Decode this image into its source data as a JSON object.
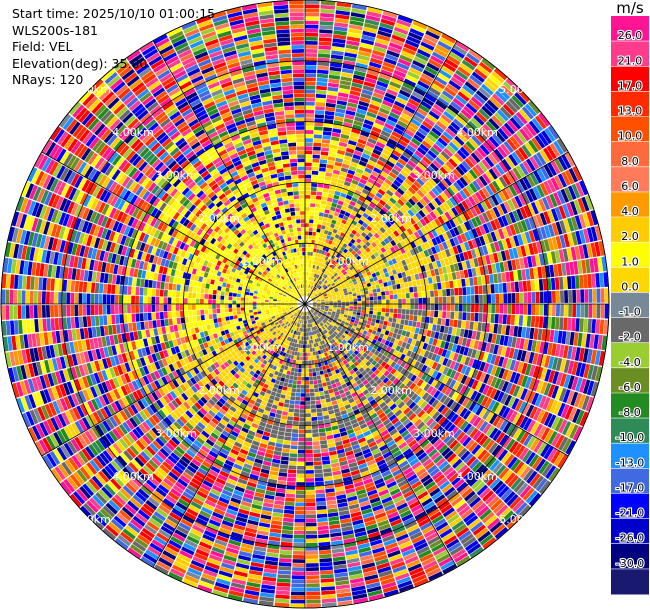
{
  "info": {
    "start_time": "Start time: 2025/10/10 01:00:15",
    "instrument": "WLS200s-181",
    "field": "Field: VEL",
    "elevation": "Elevation(deg): 35.00",
    "nrays": "NRays: 120"
  },
  "colorbar": {
    "unit": "m/s",
    "ticks": [
      "26.0",
      "21.0",
      "17.0",
      "13.0",
      "10.0",
      "8.0",
      "6.0",
      "4.0",
      "2.0",
      "1.0",
      "0.0",
      "-1.0",
      "-2.0",
      "-4.0",
      "-6.0",
      "-8.0",
      "-10.0",
      "-13.0",
      "-17.0",
      "-21.0",
      "-26.0",
      "-30.0"
    ],
    "colors": [
      "#ff1493",
      "#ff3c8c",
      "#ff0000",
      "#ff2a00",
      "#ff5000",
      "#ff6a3c",
      "#ff7b5a",
      "#ff9900",
      "#ffcc00",
      "#ffff00",
      "#ffd700",
      "#778899",
      "#696969",
      "#9acd32",
      "#6b8e23",
      "#228b22",
      "#2e8b57",
      "#1e90ff",
      "#4169e1",
      "#0000ff",
      "#0000cd",
      "#000080",
      "#191970"
    ]
  },
  "chart_data": {
    "type": "ppi",
    "field": "VEL",
    "units": "m/s",
    "nrays": 120,
    "elevation_deg": 35.0,
    "range_rings_km": [
      1.0,
      2.0,
      3.0,
      4.0,
      5.0
    ],
    "ring_labels": [
      "1.00km",
      "2.00km",
      "3.00km",
      "4.00km",
      "5.00km"
    ],
    "max_range_km": 5.0,
    "vmin": -30.0,
    "vmax": 30.0,
    "near_field_pattern": {
      "positive_velocity_sector": "north-west",
      "negative_velocity_sector": "south-east",
      "positive_value_ms": 1.5,
      "negative_value_ms": -1.5,
      "zero_value_ms": 0.0
    },
    "far_field": "noise"
  }
}
